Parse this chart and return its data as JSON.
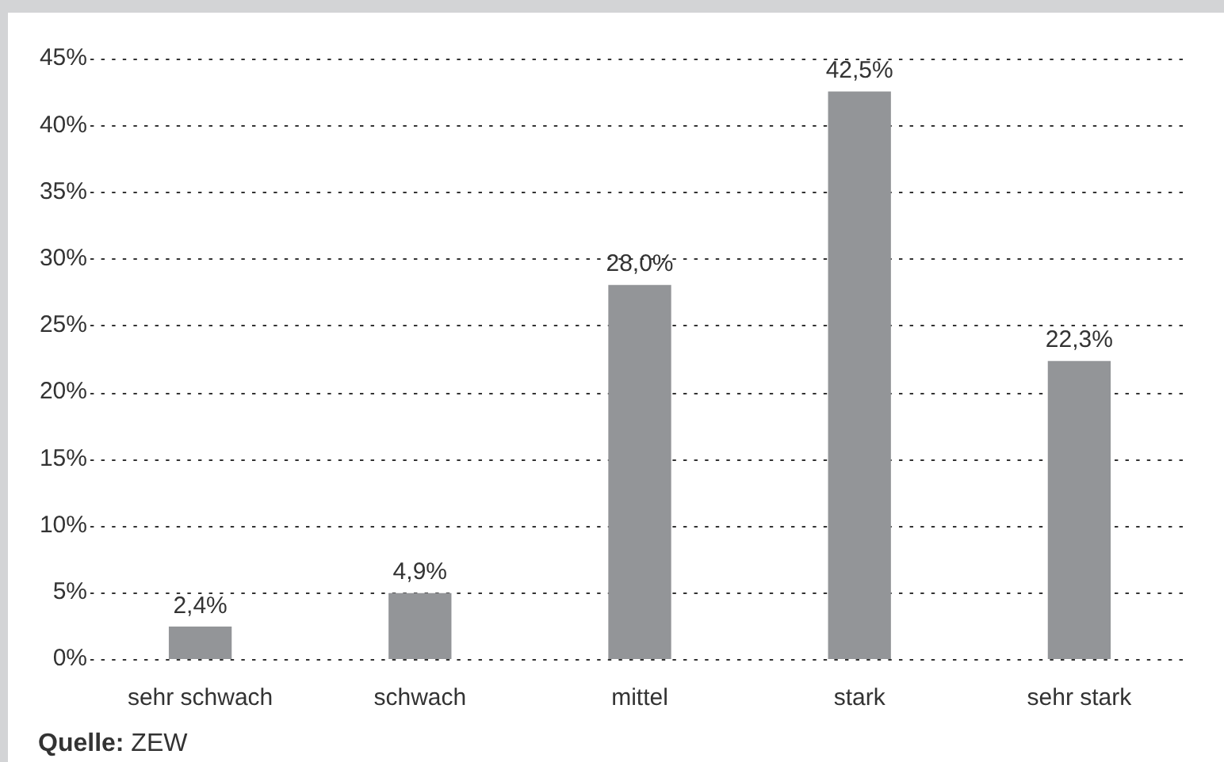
{
  "chart_data": {
    "type": "bar",
    "categories": [
      "sehr schwach",
      "schwach",
      "mittel",
      "stark",
      "sehr stark"
    ],
    "values": [
      2.4,
      4.9,
      28.0,
      42.5,
      22.3
    ],
    "color": "#939598",
    "value_labels": [
      "2,4%",
      "4,9%",
      "28,0%",
      "42,5%",
      "22,3%"
    ],
    "ylim": [
      0,
      45
    ],
    "yticks": [
      {
        "value": 0,
        "label": "0%"
      },
      {
        "value": 5,
        "label": "5%"
      },
      {
        "value": 10,
        "label": "10%"
      },
      {
        "value": 15,
        "label": "15%"
      },
      {
        "value": 20,
        "label": "20%"
      },
      {
        "value": 25,
        "label": "25%"
      },
      {
        "value": 30,
        "label": "30%"
      },
      {
        "value": 35,
        "label": "35%"
      },
      {
        "value": 40,
        "label": "40%"
      },
      {
        "value": 45,
        "label": "45%"
      }
    ],
    "grid": "y",
    "annotations": [
      "Quelle: ZEW"
    ]
  }
}
